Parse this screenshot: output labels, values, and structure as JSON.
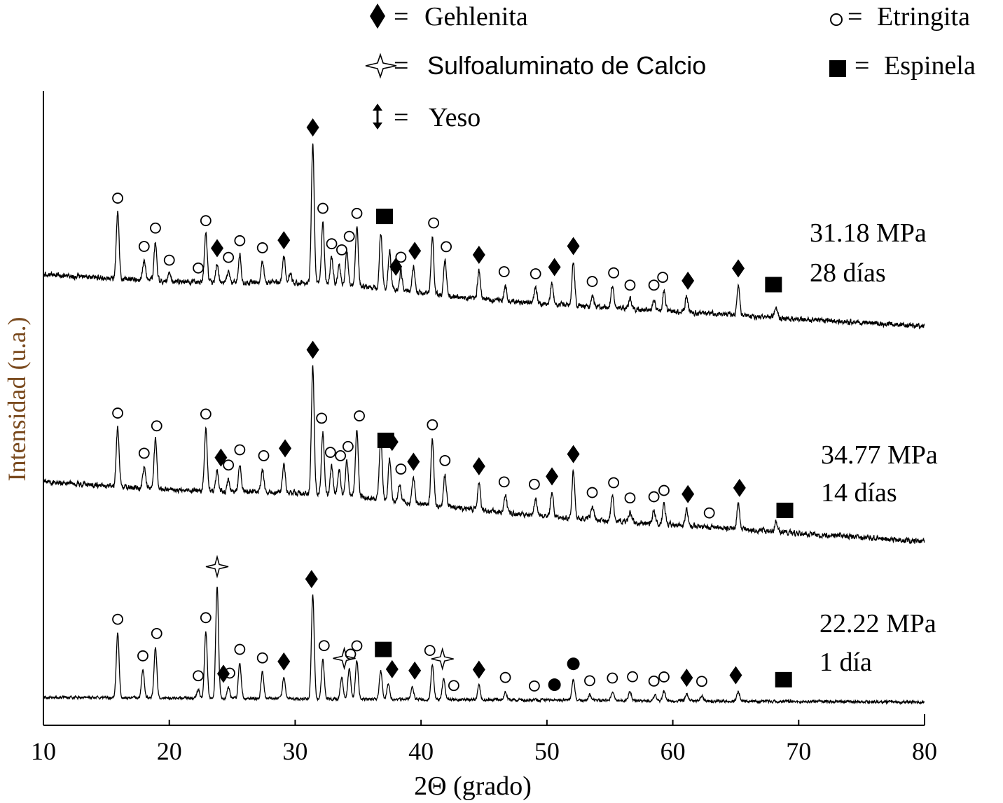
{
  "chart_data": {
    "type": "line",
    "title": "",
    "xlabel": "2Θ (grado)",
    "ylabel": "Intensidad (u.a.)",
    "xlim": [
      10,
      80
    ],
    "xticks": [
      10,
      20,
      30,
      40,
      50,
      60,
      70,
      80
    ],
    "yticks_shown": false,
    "legend_position": "top",
    "legend": [
      {
        "marker": "diamond",
        "symbol": "♦",
        "eq": "=",
        "label": "Gehlenita"
      },
      {
        "marker": "circle-open",
        "symbol": "o",
        "eq": "=",
        "label": "Etringita"
      },
      {
        "marker": "star4",
        "symbol": "✧",
        "eq": "=",
        "label": "Sulfoaluminato de Calcio"
      },
      {
        "marker": "square",
        "symbol": "■",
        "eq": "=",
        "label": "Espinela"
      },
      {
        "marker": "updown-arrow",
        "symbol": "↕",
        "eq": "=",
        "label": "Yeso"
      }
    ],
    "series": [
      {
        "label_line1": "31.18 MPa",
        "label_line2": "28 días",
        "peaks": [
          {
            "x": 15.9,
            "h": 95
          },
          {
            "x": 18.0,
            "h": 28
          },
          {
            "x": 18.9,
            "h": 55
          },
          {
            "x": 20.0,
            "h": 10
          },
          {
            "x": 22.9,
            "h": 68
          },
          {
            "x": 23.8,
            "h": 26
          },
          {
            "x": 24.7,
            "h": 16
          },
          {
            "x": 25.6,
            "h": 40
          },
          {
            "x": 27.4,
            "h": 30
          },
          {
            "x": 29.1,
            "h": 38
          },
          {
            "x": 29.6,
            "h": 14
          },
          {
            "x": 31.4,
            "h": 200
          },
          {
            "x": 32.2,
            "h": 88
          },
          {
            "x": 32.9,
            "h": 38
          },
          {
            "x": 33.5,
            "h": 30
          },
          {
            "x": 34.1,
            "h": 50
          },
          {
            "x": 34.9,
            "h": 84
          },
          {
            "x": 36.8,
            "h": 80
          },
          {
            "x": 37.5,
            "h": 55
          },
          {
            "x": 38.4,
            "h": 28
          },
          {
            "x": 39.4,
            "h": 36
          },
          {
            "x": 40.9,
            "h": 82
          },
          {
            "x": 41.9,
            "h": 50
          },
          {
            "x": 44.6,
            "h": 40
          },
          {
            "x": 46.7,
            "h": 22
          },
          {
            "x": 49.1,
            "h": 22
          },
          {
            "x": 50.4,
            "h": 30
          },
          {
            "x": 52.1,
            "h": 62
          },
          {
            "x": 53.6,
            "h": 16
          },
          {
            "x": 55.2,
            "h": 30
          },
          {
            "x": 56.6,
            "h": 14
          },
          {
            "x": 58.5,
            "h": 16
          },
          {
            "x": 59.3,
            "h": 28
          },
          {
            "x": 61.1,
            "h": 22
          },
          {
            "x": 65.2,
            "h": 44
          },
          {
            "x": 68.2,
            "h": 16
          }
        ],
        "annotations": [
          {
            "x": 15.9,
            "m": "circle-open"
          },
          {
            "x": 18.0,
            "m": "circle-open"
          },
          {
            "x": 18.9,
            "m": "circle-open"
          },
          {
            "x": 20.0,
            "m": "circle-open"
          },
          {
            "x": 22.3,
            "m": "circle-open"
          },
          {
            "x": 22.9,
            "m": "circle-open"
          },
          {
            "x": 23.8,
            "m": "diamond"
          },
          {
            "x": 24.7,
            "m": "circle-open"
          },
          {
            "x": 25.6,
            "m": "circle-open"
          },
          {
            "x": 27.4,
            "m": "circle-open"
          },
          {
            "x": 29.1,
            "m": "diamond"
          },
          {
            "x": 31.4,
            "m": "diamond"
          },
          {
            "x": 32.2,
            "m": "circle-open"
          },
          {
            "x": 32.9,
            "m": "circle-open"
          },
          {
            "x": 33.7,
            "m": "circle-open"
          },
          {
            "x": 34.3,
            "m": "circle-open"
          },
          {
            "x": 34.9,
            "m": "circle-open"
          },
          {
            "x": 37.1,
            "m": "square"
          },
          {
            "x": 38.0,
            "m": "diamond"
          },
          {
            "x": 38.4,
            "m": "circle-open"
          },
          {
            "x": 39.5,
            "m": "diamond"
          },
          {
            "x": 41.0,
            "m": "circle-open"
          },
          {
            "x": 42.0,
            "m": "circle-open"
          },
          {
            "x": 44.6,
            "m": "diamond"
          },
          {
            "x": 46.6,
            "m": "circle-open"
          },
          {
            "x": 49.1,
            "m": "circle-open"
          },
          {
            "x": 50.6,
            "m": "diamond"
          },
          {
            "x": 52.1,
            "m": "diamond"
          },
          {
            "x": 53.6,
            "m": "circle-open"
          },
          {
            "x": 55.3,
            "m": "circle-open"
          },
          {
            "x": 56.6,
            "m": "circle-open"
          },
          {
            "x": 58.5,
            "m": "circle-open"
          },
          {
            "x": 59.2,
            "m": "circle-open"
          },
          {
            "x": 61.2,
            "m": "diamond"
          },
          {
            "x": 65.2,
            "m": "diamond"
          },
          {
            "x": 68.0,
            "m": "square"
          }
        ]
      },
      {
        "label_line1": "34.77 MPa",
        "label_line2": "14  días",
        "peaks": [
          {
            "x": 15.9,
            "h": 85
          },
          {
            "x": 18.0,
            "h": 30
          },
          {
            "x": 18.9,
            "h": 70
          },
          {
            "x": 22.9,
            "h": 90
          },
          {
            "x": 23.8,
            "h": 28
          },
          {
            "x": 24.7,
            "h": 18
          },
          {
            "x": 25.6,
            "h": 40
          },
          {
            "x": 27.4,
            "h": 32
          },
          {
            "x": 29.1,
            "h": 40
          },
          {
            "x": 31.4,
            "h": 182
          },
          {
            "x": 32.2,
            "h": 88
          },
          {
            "x": 32.9,
            "h": 40
          },
          {
            "x": 33.5,
            "h": 36
          },
          {
            "x": 34.1,
            "h": 50
          },
          {
            "x": 34.9,
            "h": 95
          },
          {
            "x": 36.8,
            "h": 90
          },
          {
            "x": 37.5,
            "h": 60
          },
          {
            "x": 38.3,
            "h": 26
          },
          {
            "x": 39.4,
            "h": 36
          },
          {
            "x": 40.9,
            "h": 95
          },
          {
            "x": 41.9,
            "h": 46
          },
          {
            "x": 44.6,
            "h": 40
          },
          {
            "x": 46.7,
            "h": 24
          },
          {
            "x": 49.1,
            "h": 24
          },
          {
            "x": 50.4,
            "h": 34
          },
          {
            "x": 52.1,
            "h": 68
          },
          {
            "x": 53.6,
            "h": 18
          },
          {
            "x": 55.2,
            "h": 34
          },
          {
            "x": 56.6,
            "h": 14
          },
          {
            "x": 58.5,
            "h": 18
          },
          {
            "x": 59.3,
            "h": 28
          },
          {
            "x": 61.1,
            "h": 22
          },
          {
            "x": 65.2,
            "h": 36
          },
          {
            "x": 68.2,
            "h": 14
          }
        ],
        "annotations": [
          {
            "x": 15.9,
            "m": "circle-open"
          },
          {
            "x": 18.0,
            "m": "circle-open"
          },
          {
            "x": 19.0,
            "m": "circle-open"
          },
          {
            "x": 22.9,
            "m": "circle-open"
          },
          {
            "x": 24.1,
            "m": "diamond"
          },
          {
            "x": 24.7,
            "m": "circle-open"
          },
          {
            "x": 25.6,
            "m": "circle-open"
          },
          {
            "x": 27.5,
            "m": "circle-open"
          },
          {
            "x": 29.2,
            "m": "diamond"
          },
          {
            "x": 31.4,
            "m": "diamond"
          },
          {
            "x": 32.1,
            "m": "circle-open"
          },
          {
            "x": 32.8,
            "m": "circle-open"
          },
          {
            "x": 33.6,
            "m": "circle-open"
          },
          {
            "x": 34.2,
            "m": "circle-open"
          },
          {
            "x": 35.1,
            "m": "circle-open"
          },
          {
            "x": 37.2,
            "m": "square"
          },
          {
            "x": 37.7,
            "m": "diamond"
          },
          {
            "x": 38.4,
            "m": "circle-open"
          },
          {
            "x": 39.4,
            "m": "diamond"
          },
          {
            "x": 40.9,
            "m": "circle-open"
          },
          {
            "x": 41.9,
            "m": "circle-open"
          },
          {
            "x": 44.6,
            "m": "diamond"
          },
          {
            "x": 46.6,
            "m": "circle-open"
          },
          {
            "x": 49.0,
            "m": "circle-open"
          },
          {
            "x": 50.4,
            "m": "diamond"
          },
          {
            "x": 52.1,
            "m": "diamond"
          },
          {
            "x": 53.6,
            "m": "circle-open"
          },
          {
            "x": 55.3,
            "m": "circle-open"
          },
          {
            "x": 56.6,
            "m": "circle-open"
          },
          {
            "x": 58.5,
            "m": "circle-open"
          },
          {
            "x": 59.3,
            "m": "circle-open"
          },
          {
            "x": 61.2,
            "m": "diamond"
          },
          {
            "x": 62.9,
            "m": "circle-open"
          },
          {
            "x": 65.3,
            "m": "diamond"
          },
          {
            "x": 68.9,
            "m": "square"
          }
        ]
      },
      {
        "label_line1": "22.22 MPa",
        "label_line2": "1 día",
        "peaks": [
          {
            "x": 15.9,
            "h": 92
          },
          {
            "x": 17.9,
            "h": 40
          },
          {
            "x": 18.9,
            "h": 72
          },
          {
            "x": 22.3,
            "h": 12
          },
          {
            "x": 22.9,
            "h": 95
          },
          {
            "x": 23.8,
            "h": 160
          },
          {
            "x": 24.7,
            "h": 16
          },
          {
            "x": 25.6,
            "h": 50
          },
          {
            "x": 27.4,
            "h": 38
          },
          {
            "x": 29.1,
            "h": 30
          },
          {
            "x": 31.4,
            "h": 148
          },
          {
            "x": 32.2,
            "h": 56
          },
          {
            "x": 33.7,
            "h": 30
          },
          {
            "x": 34.3,
            "h": 44
          },
          {
            "x": 34.9,
            "h": 56
          },
          {
            "x": 36.8,
            "h": 40
          },
          {
            "x": 37.4,
            "h": 22
          },
          {
            "x": 39.3,
            "h": 18
          },
          {
            "x": 40.9,
            "h": 50
          },
          {
            "x": 41.8,
            "h": 30
          },
          {
            "x": 44.6,
            "h": 20
          },
          {
            "x": 46.7,
            "h": 12
          },
          {
            "x": 52.1,
            "h": 30
          },
          {
            "x": 53.4,
            "h": 8
          },
          {
            "x": 55.2,
            "h": 12
          },
          {
            "x": 56.6,
            "h": 14
          },
          {
            "x": 58.6,
            "h": 8
          },
          {
            "x": 59.3,
            "h": 14
          },
          {
            "x": 61.1,
            "h": 10
          },
          {
            "x": 62.3,
            "h": 8
          },
          {
            "x": 65.2,
            "h": 14
          }
        ],
        "annotations": [
          {
            "x": 15.9,
            "m": "circle-open"
          },
          {
            "x": 17.9,
            "m": "circle-open"
          },
          {
            "x": 19.0,
            "m": "circle-open"
          },
          {
            "x": 22.3,
            "m": "circle-open"
          },
          {
            "x": 22.9,
            "m": "circle-open"
          },
          {
            "x": 23.8,
            "m": "star4"
          },
          {
            "x": 24.3,
            "m": "diamond"
          },
          {
            "x": 24.8,
            "m": "circle-open"
          },
          {
            "x": 25.6,
            "m": "circle-open"
          },
          {
            "x": 27.4,
            "m": "circle-open"
          },
          {
            "x": 29.1,
            "m": "diamond"
          },
          {
            "x": 31.3,
            "m": "diamond"
          },
          {
            "x": 32.3,
            "m": "circle-open"
          },
          {
            "x": 33.9,
            "m": "star4"
          },
          {
            "x": 34.4,
            "m": "circle-open"
          },
          {
            "x": 34.9,
            "m": "circle-open"
          },
          {
            "x": 37.0,
            "m": "square"
          },
          {
            "x": 37.7,
            "m": "diamond"
          },
          {
            "x": 39.5,
            "m": "diamond"
          },
          {
            "x": 40.7,
            "m": "circle-open"
          },
          {
            "x": 41.7,
            "m": "star4"
          },
          {
            "x": 42.6,
            "m": "circle-open"
          },
          {
            "x": 44.6,
            "m": "diamond"
          },
          {
            "x": 46.7,
            "m": "circle-open"
          },
          {
            "x": 49.0,
            "m": "circle-open"
          },
          {
            "x": 50.6,
            "m": "dot-filled"
          },
          {
            "x": 52.1,
            "m": "dot-filled"
          },
          {
            "x": 53.4,
            "m": "circle-open"
          },
          {
            "x": 55.2,
            "m": "circle-open"
          },
          {
            "x": 56.8,
            "m": "circle-open"
          },
          {
            "x": 58.5,
            "m": "circle-open"
          },
          {
            "x": 59.3,
            "m": "circle-open"
          },
          {
            "x": 61.1,
            "m": "diamond"
          },
          {
            "x": 62.3,
            "m": "circle-open"
          },
          {
            "x": 65.0,
            "m": "diamond"
          },
          {
            "x": 68.8,
            "m": "square"
          }
        ]
      }
    ]
  }
}
